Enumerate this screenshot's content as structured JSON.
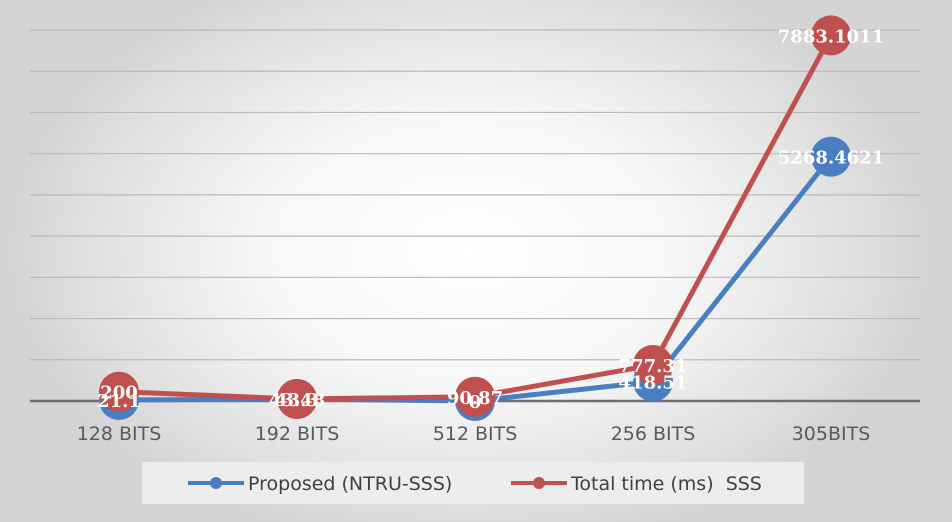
{
  "chart_data": {
    "type": "line",
    "categories": [
      "128 BITS",
      "192 BITS",
      "512 BITS",
      "256 BITS",
      "305BITS"
    ],
    "ylim": [
      0,
      8000
    ],
    "grid": true,
    "legend_position": "bottom",
    "series": [
      {
        "name": "Proposed (NTRU-SSS)",
        "values": [
          21.1,
          43.3,
          0,
          418.5,
          5268.4621
        ],
        "labels": [
          "21.1",
          "43.3",
          "0",
          "418.51",
          "5268.4621"
        ],
        "color": "#4a7ec2"
      },
      {
        "name": "Total time (ms)  SSS",
        "values": [
          200,
          43.48,
          90.87,
          777.3,
          7883.1011
        ],
        "labels": [
          "200",
          "43.48",
          "90.87",
          "777.31",
          "7883.1011"
        ],
        "color": "#c0504d"
      }
    ]
  }
}
